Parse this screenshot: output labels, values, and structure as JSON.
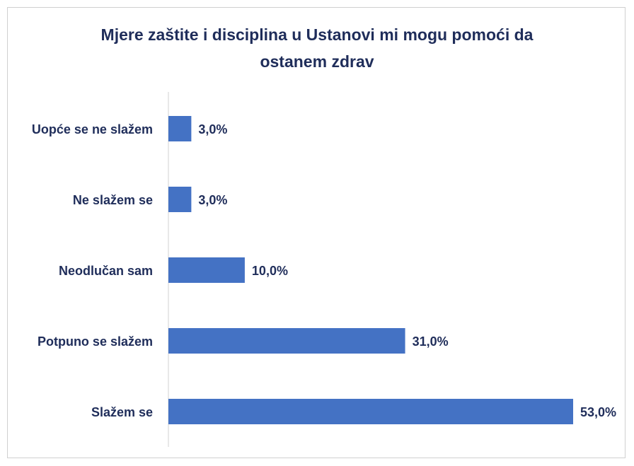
{
  "chart_data": {
    "type": "bar",
    "orientation": "horizontal",
    "title": "Mjere zaštite i disciplina u Ustanovi mi mogu pomoći da ostanem zdrav",
    "categories": [
      "Uopće se ne slažem",
      "Ne slažem se",
      "Neodlučan sam",
      "Potpuno se slažem",
      "Slažem se"
    ],
    "values": [
      3,
      3,
      10,
      31,
      53
    ],
    "value_labels": [
      "3,0%",
      "3,0%",
      "10,0%",
      "31,0%",
      "53,0%"
    ],
    "color": "#4472c4"
  }
}
